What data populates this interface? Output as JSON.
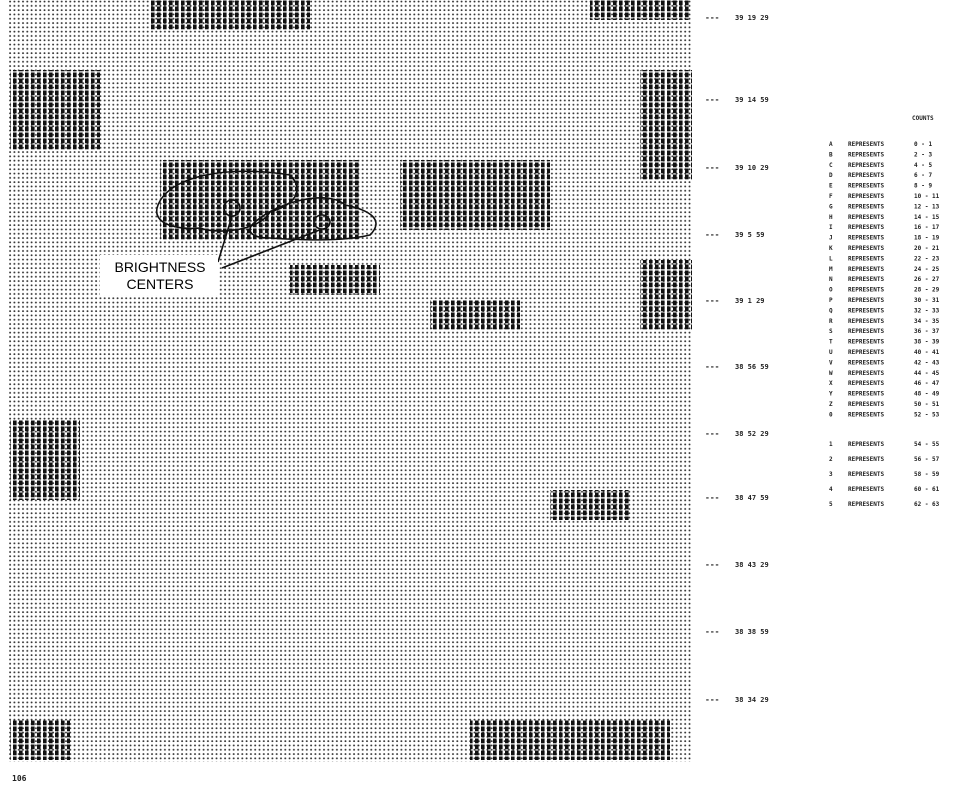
{
  "map": {
    "annotation": "BRIGHTNESS\nCENTERS",
    "row_marker": "---",
    "latitudes": [
      "39 19 29",
      "39 14 59",
      "39 10 29",
      "39 5 59",
      "39 1 29",
      "38 56 59",
      "38 52 29",
      "38 47 59",
      "38 43 29",
      "38 38 59",
      "38 34 29"
    ],
    "footer": "106"
  },
  "legend": {
    "heading": "COUNTS",
    "verb": "REPRESENTS",
    "rows": [
      [
        "A",
        "0 - 1"
      ],
      [
        "B",
        "2 - 3"
      ],
      [
        "C",
        "4 - 5"
      ],
      [
        "D",
        "6 - 7"
      ],
      [
        "E",
        "8 - 9"
      ],
      [
        "F",
        "10 - 11"
      ],
      [
        "G",
        "12 - 13"
      ],
      [
        "H",
        "14 - 15"
      ],
      [
        "I",
        "16 - 17"
      ],
      [
        "J",
        "18 - 19"
      ],
      [
        "K",
        "20 - 21"
      ],
      [
        "L",
        "22 - 23"
      ],
      [
        "M",
        "24 - 25"
      ],
      [
        "N",
        "26 - 27"
      ],
      [
        "O",
        "28 - 29"
      ],
      [
        "P",
        "30 - 31"
      ],
      [
        "Q",
        "32 - 33"
      ],
      [
        "R",
        "34 - 35"
      ],
      [
        "S",
        "36 - 37"
      ],
      [
        "T",
        "38 - 39"
      ],
      [
        "U",
        "40 - 41"
      ],
      [
        "V",
        "42 - 43"
      ],
      [
        "W",
        "44 - 45"
      ],
      [
        "X",
        "46 - 47"
      ],
      [
        "Y",
        "48 - 49"
      ],
      [
        "Z",
        "50 - 51"
      ],
      [
        "0",
        "52 - 53"
      ],
      [
        "1",
        "54 - 55"
      ],
      [
        "2",
        "56 - 57"
      ],
      [
        "3",
        "58 - 59"
      ],
      [
        "4",
        "60 - 61"
      ],
      [
        "5",
        "62 - 63"
      ]
    ]
  }
}
